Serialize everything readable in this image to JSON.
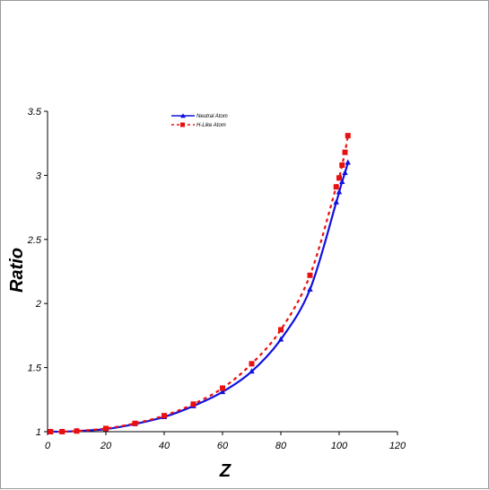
{
  "chart_data": {
    "type": "line",
    "title": "",
    "xlabel": "Z",
    "ylabel": "Ratio",
    "xlim": [
      0,
      120
    ],
    "ylim": [
      1,
      3.5
    ],
    "x_ticks": [
      "0",
      "20",
      "40",
      "60",
      "80",
      "100",
      "120"
    ],
    "y_ticks": [
      "1",
      "1.5",
      "2",
      "2.5",
      "3",
      "3.5"
    ],
    "grid": false,
    "legend_position": "top-center",
    "series": [
      {
        "name": "Neutral Atom",
        "color": "#1010e0",
        "line_style": "solid",
        "marker": "triangle",
        "x": [
          1,
          5,
          10,
          20,
          30,
          40,
          50,
          60,
          70,
          80,
          90,
          99,
          100,
          101,
          102,
          103
        ],
        "y": [
          1.0,
          1.0,
          1.005,
          1.02,
          1.06,
          1.115,
          1.2,
          1.31,
          1.47,
          1.72,
          2.11,
          2.79,
          2.87,
          2.95,
          3.02,
          3.1
        ]
      },
      {
        "name": "H-Like Atom",
        "color": "#e81010",
        "line_style": "dashed",
        "marker": "square",
        "x": [
          1,
          5,
          10,
          20,
          30,
          40,
          50,
          60,
          70,
          80,
          90,
          99,
          100,
          101,
          102,
          103
        ],
        "y": [
          1.0,
          1.0,
          1.005,
          1.025,
          1.065,
          1.125,
          1.215,
          1.34,
          1.53,
          1.795,
          2.22,
          2.91,
          2.98,
          3.08,
          3.18,
          3.31
        ]
      }
    ]
  }
}
